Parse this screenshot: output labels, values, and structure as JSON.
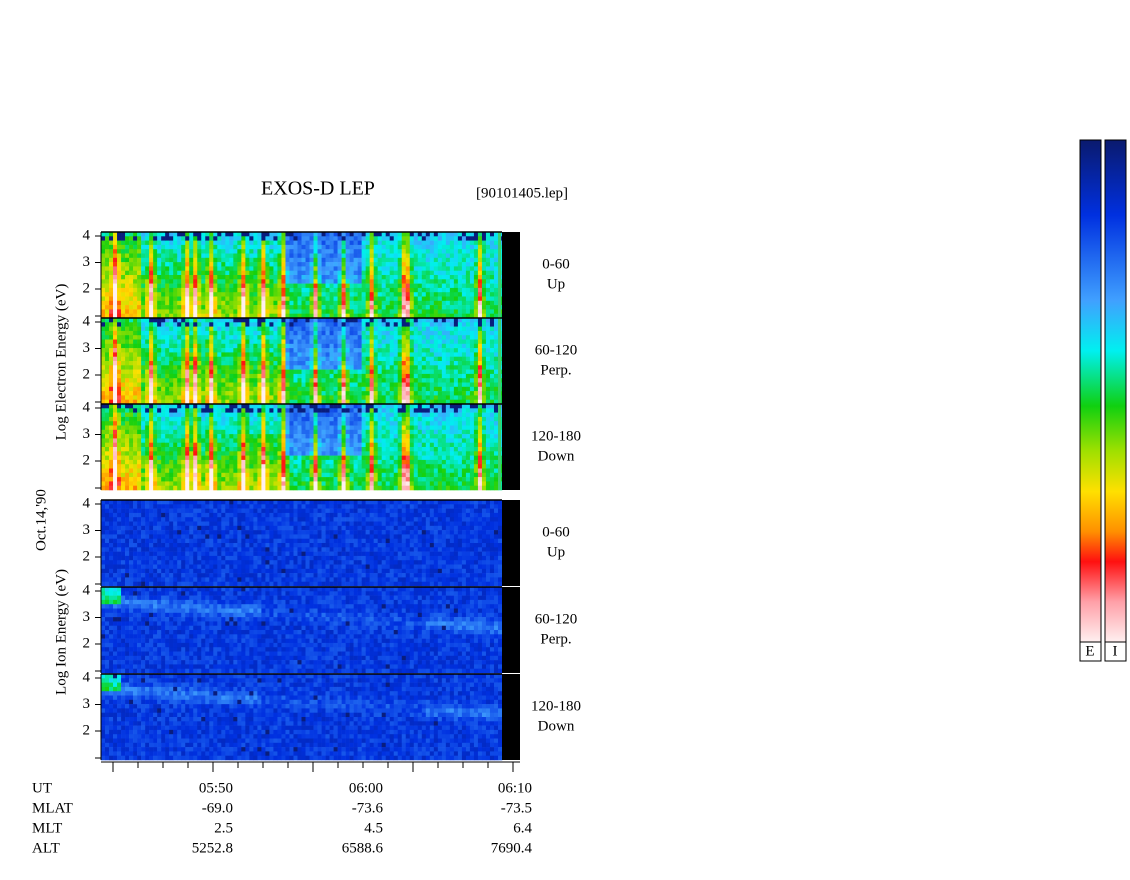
{
  "header": {
    "title": "EXOS-D LEP",
    "file": "[90101405.lep]"
  },
  "date": "Oct.14,'90",
  "electron": {
    "ylabel": "Log Electron Energy (eV)",
    "panels": [
      {
        "angle": "0-60",
        "dir": "Up"
      },
      {
        "angle": "60-120",
        "dir": "Perp."
      },
      {
        "angle": "120-180",
        "dir": "Down"
      }
    ]
  },
  "ion": {
    "ylabel": "Log Ion Energy (eV)",
    "panels": [
      {
        "angle": "0-60",
        "dir": "Up"
      },
      {
        "angle": "60-120",
        "dir": "Perp."
      },
      {
        "angle": "120-180",
        "dir": "Down"
      }
    ]
  },
  "yticks": [
    "4",
    "3",
    "2"
  ],
  "ephemeris": {
    "rows": [
      [
        "UT",
        "05:50",
        "06:00",
        "06:10"
      ],
      [
        "MLAT",
        "-69.0",
        "-73.6",
        "-73.5"
      ],
      [
        "MLT",
        "2.5",
        "4.5",
        "6.4"
      ],
      [
        "ALT",
        "5252.8",
        "6588.6",
        "7690.4"
      ]
    ]
  },
  "colorbar": {
    "labels": [
      "E",
      "I"
    ]
  }
}
